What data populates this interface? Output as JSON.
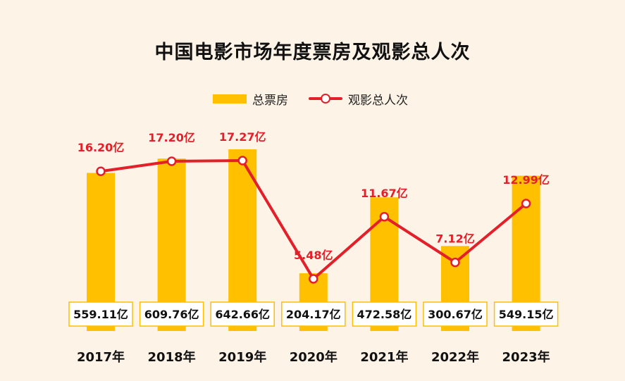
{
  "chart_data": {
    "type": "bar",
    "title": "中国电影市场年度票房及观影总人次",
    "categories": [
      "2017年",
      "2018年",
      "2019年",
      "2020年",
      "2021年",
      "2022年",
      "2023年"
    ],
    "series": [
      {
        "name": "总票房",
        "type": "bar",
        "color": "#ffc000",
        "values": [
          559.11,
          609.76,
          642.66,
          204.17,
          472.58,
          300.67,
          549.15
        ],
        "labels": [
          "559.11亿",
          "609.76亿",
          "642.66亿",
          "204.17亿",
          "472.58亿",
          "300.67亿",
          "549.15亿"
        ]
      },
      {
        "name": "观影总人次",
        "type": "line",
        "color": "#e3202a",
        "values": [
          16.2,
          17.2,
          17.27,
          5.48,
          11.67,
          7.12,
          12.99
        ],
        "labels": [
          "16.20亿",
          "17.20亿",
          "17.27亿",
          "5.48亿",
          "11.67亿",
          "7.12亿",
          "12.99亿"
        ]
      }
    ],
    "legend_position": "top-center",
    "grid": false
  }
}
